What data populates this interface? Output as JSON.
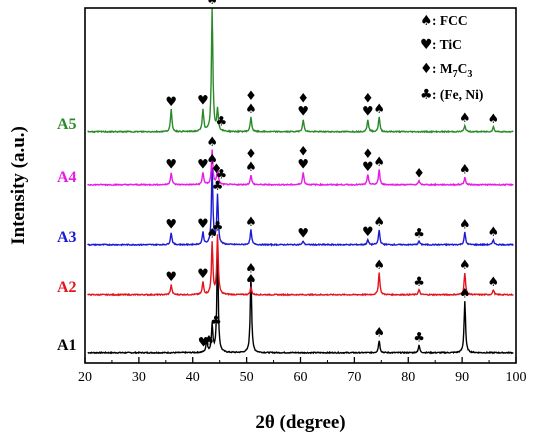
{
  "chart_data": {
    "type": "line",
    "xlabel": "2θ (degree)",
    "ylabel": "Intensity (a.u.)",
    "xlim": [
      20,
      100
    ],
    "xticks": [
      20,
      30,
      40,
      50,
      60,
      70,
      80,
      90,
      100
    ],
    "legend": [
      {
        "symbol": "♠",
        "label": ": FCC"
      },
      {
        "symbol": "♥",
        "label": ": TiC"
      },
      {
        "symbol": "♦",
        "label": ": M7C3",
        "label_main": ": M",
        "sub1": "7",
        "mid": "C",
        "sub2": "3"
      },
      {
        "symbol": "♣",
        "label": ": (Fe, Ni)"
      }
    ],
    "series": [
      {
        "name": "A1",
        "color": "#000000",
        "offset": 0,
        "peaks": [
          [
            42.6,
            10
          ],
          [
            43.6,
            22
          ],
          [
            44.6,
            82
          ],
          [
            50.8,
            62
          ],
          [
            74.6,
            10
          ],
          [
            82.0,
            6
          ],
          [
            90.5,
            42
          ]
        ],
        "markers": [
          [
            42.0,
            "♥"
          ],
          [
            43.0,
            "♠"
          ],
          [
            44.3,
            "♣"
          ],
          [
            50.8,
            "♠"
          ],
          [
            74.6,
            "♠"
          ],
          [
            82.0,
            "♣"
          ],
          [
            90.5,
            "♠"
          ]
        ]
      },
      {
        "name": "A2",
        "color": "#e3141b",
        "offset": 1,
        "peaks": [
          [
            36.0,
            8
          ],
          [
            41.9,
            10
          ],
          [
            43.6,
            42
          ],
          [
            44.6,
            48
          ],
          [
            50.8,
            6
          ],
          [
            74.6,
            18
          ],
          [
            82.0,
            4
          ],
          [
            90.5,
            18
          ],
          [
            95.8,
            4
          ]
        ],
        "markers": [
          [
            36.0,
            "♥"
          ],
          [
            41.9,
            "♥"
          ],
          [
            43.6,
            "♠"
          ],
          [
            44.6,
            "♣"
          ],
          [
            50.8,
            "♠"
          ],
          [
            74.6,
            "♠"
          ],
          [
            82.0,
            "♣"
          ],
          [
            90.5,
            "♠"
          ],
          [
            95.8,
            "♠"
          ]
        ]
      },
      {
        "name": "A3",
        "color": "#1a1ad6",
        "offset": 2,
        "peaks": [
          [
            36.0,
            10
          ],
          [
            41.9,
            10
          ],
          [
            43.6,
            62
          ],
          [
            44.6,
            40
          ],
          [
            50.8,
            12
          ],
          [
            60.5,
            3
          ],
          [
            72.5,
            4
          ],
          [
            74.6,
            12
          ],
          [
            82.0,
            3
          ],
          [
            90.5,
            10
          ],
          [
            95.8,
            4
          ]
        ],
        "markers": [
          [
            36.0,
            "♥"
          ],
          [
            41.9,
            "♥"
          ],
          [
            43.6,
            "♠"
          ],
          [
            44.6,
            "♣"
          ],
          [
            50.8,
            "♠"
          ],
          [
            60.5,
            "♥"
          ],
          [
            72.5,
            "♥"
          ],
          [
            74.6,
            "♠"
          ],
          [
            82.0,
            "♣"
          ],
          [
            90.5,
            "♠"
          ],
          [
            95.8,
            "♠"
          ]
        ]
      },
      {
        "name": "A4",
        "color": "#e61be6",
        "offset": 3,
        "peaks": [
          [
            36.0,
            10
          ],
          [
            41.9,
            10
          ],
          [
            43.6,
            28
          ],
          [
            44.6,
            14
          ],
          [
            50.8,
            8
          ],
          [
            60.5,
            10
          ],
          [
            72.5,
            8
          ],
          [
            74.6,
            12
          ],
          [
            82.0,
            3
          ],
          [
            90.5,
            6
          ]
        ],
        "markers": [
          [
            36.0,
            "♥"
          ],
          [
            41.9,
            "♥"
          ],
          [
            43.6,
            "♠"
          ],
          [
            44.4,
            "♦"
          ],
          [
            45.3,
            "♣"
          ],
          [
            50.8,
            "♦♠"
          ],
          [
            60.5,
            "♦♥"
          ],
          [
            72.5,
            "♦♥"
          ],
          [
            74.6,
            "♠"
          ],
          [
            82.0,
            "♦"
          ],
          [
            90.5,
            "♠"
          ]
        ]
      },
      {
        "name": "A5",
        "color": "#2a8a2a",
        "offset": 4,
        "peaks": [
          [
            36.0,
            18
          ],
          [
            41.9,
            18
          ],
          [
            43.6,
            100
          ],
          [
            44.6,
            18
          ],
          [
            50.8,
            12
          ],
          [
            60.5,
            10
          ],
          [
            72.5,
            10
          ],
          [
            74.6,
            12
          ],
          [
            90.5,
            5
          ],
          [
            95.8,
            4
          ]
        ],
        "markers": [
          [
            36.0,
            "♥"
          ],
          [
            41.9,
            "♥"
          ],
          [
            43.6,
            "♠"
          ],
          [
            45.3,
            "♣"
          ],
          [
            50.8,
            "♦♠"
          ],
          [
            60.5,
            "♦♥"
          ],
          [
            72.5,
            "♦♥"
          ],
          [
            74.6,
            "♠"
          ],
          [
            90.5,
            "♠"
          ],
          [
            95.8,
            "♠"
          ]
        ]
      }
    ]
  }
}
